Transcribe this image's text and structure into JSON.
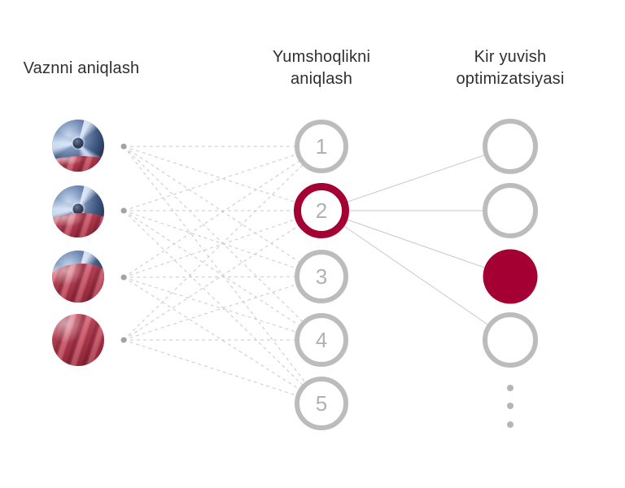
{
  "columns": [
    {
      "id": "weight-detection",
      "label_lines": [
        "Vaznni aniqlash"
      ]
    },
    {
      "id": "softness-detection",
      "label_lines": [
        "Yumshoqlikni",
        "aniqlash"
      ]
    },
    {
      "id": "wash-optimization",
      "label_lines": [
        "Kir yuvish",
        "optimizatsiyasi"
      ]
    }
  ],
  "input_nodes": [
    {
      "name": "laundry-photo-1",
      "description": "metal drum with small red laundry load",
      "red_ratio": 0.3
    },
    {
      "name": "laundry-photo-2",
      "description": "metal drum with medium red laundry load",
      "red_ratio": 0.46
    },
    {
      "name": "laundry-photo-3",
      "description": "drum mostly covered by red laundry",
      "red_ratio": 0.74
    },
    {
      "name": "laundry-photo-4",
      "description": "red laundry fills the whole frame",
      "red_ratio": 1.0
    }
  ],
  "hidden_nodes": [
    {
      "number": "1",
      "selected": false
    },
    {
      "number": "2",
      "selected": true
    },
    {
      "number": "3",
      "selected": false
    },
    {
      "number": "4",
      "selected": false
    },
    {
      "number": "5",
      "selected": false
    }
  ],
  "output_nodes": [
    {
      "selected": false
    },
    {
      "selected": false
    },
    {
      "selected": true
    },
    {
      "selected": false
    }
  ],
  "ellipsis_dot_count": 3,
  "connections": {
    "input_to_hidden": {
      "pairs": "all",
      "style": "dashed"
    },
    "hidden_to_output": {
      "from_hidden_number": "2",
      "to": "all",
      "style": "solid"
    }
  },
  "colors": {
    "accent_red": "#a50034",
    "ring_gray": "#bcbcbc",
    "number_gray": "#b1b1b1",
    "line_gray": "#c9c9c9",
    "connector_dot_gray": "#a3a3a3",
    "ellipsis_dot_gray": "#b5b5b5",
    "heading_text": "#2f2f2f"
  }
}
